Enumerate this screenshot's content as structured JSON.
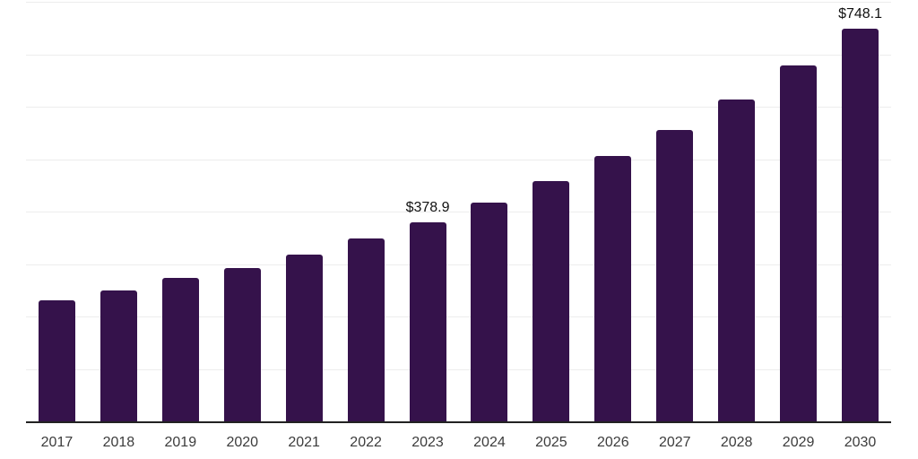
{
  "chart_data": {
    "type": "bar",
    "title": "",
    "xlabel": "",
    "ylabel": "",
    "categories": [
      "2017",
      "2018",
      "2019",
      "2020",
      "2021",
      "2022",
      "2023",
      "2024",
      "2025",
      "2026",
      "2027",
      "2028",
      "2029",
      "2030"
    ],
    "values": [
      231.0,
      250.2,
      273.0,
      291.5,
      317.5,
      348.5,
      378.9,
      417.5,
      458.5,
      505.5,
      555.5,
      613.5,
      679.0,
      748.1
    ],
    "data_labels": [
      {
        "category": "2023",
        "text": "$378.9"
      },
      {
        "category": "2030",
        "text": "$748.1"
      }
    ],
    "ylim": [
      0,
      800
    ],
    "grid_step": 100,
    "grid": true,
    "legend": "none",
    "colors": {
      "bar": "#35124b",
      "axis_line": "#222222",
      "gridline": "#ededed",
      "tick_label": "#3c3c3c",
      "data_label": "#111111",
      "background": "#ffffff"
    }
  }
}
